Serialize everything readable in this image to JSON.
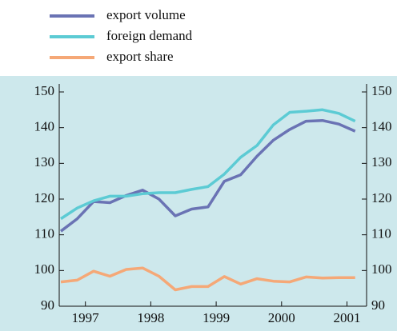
{
  "chart_data": {
    "type": "line",
    "x": [
      1996.625,
      1996.875,
      1997.125,
      1997.375,
      1997.625,
      1997.875,
      1998.125,
      1998.375,
      1998.625,
      1998.875,
      1999.125,
      1999.375,
      1999.625,
      1999.875,
      2000.125,
      2000.375,
      2000.625,
      2000.875,
      2001.125
    ],
    "series": [
      {
        "name": "export volume",
        "color": "#6a73b4",
        "values": [
          111,
          114.5,
          119.3,
          119,
          121,
          122.5,
          120,
          115.3,
          117.2,
          117.8,
          125,
          126.8,
          132,
          136.5,
          139.5,
          141.8,
          142,
          141,
          139
        ]
      },
      {
        "name": "foreign demand",
        "color": "#5ccbd4",
        "values": [
          114.5,
          117.5,
          119.5,
          120.8,
          120.8,
          121.5,
          121.8,
          121.8,
          122.7,
          123.5,
          127,
          131.7,
          135,
          140.8,
          144.3,
          144.6,
          145,
          144,
          141.8
        ]
      },
      {
        "name": "export share",
        "color": "#f5a877",
        "values": [
          96.8,
          97.3,
          99.8,
          98.4,
          100.3,
          100.7,
          98.4,
          94.6,
          95.5,
          95.5,
          98.3,
          96.2,
          97.7,
          97,
          96.8,
          98.2,
          97.9,
          98,
          98
        ]
      }
    ],
    "xlim": [
      1996.6,
      2001.3
    ],
    "xticks": [
      1997,
      1998,
      1999,
      2000,
      2001
    ],
    "ylim": [
      90,
      150
    ],
    "yticks": [
      90,
      100,
      110,
      120,
      130,
      140,
      150
    ],
    "y2lim": [
      90,
      150
    ],
    "y2ticks": [
      90,
      100,
      110,
      120,
      130,
      140,
      150
    ],
    "legend": "top",
    "background": "#cde8ec"
  }
}
